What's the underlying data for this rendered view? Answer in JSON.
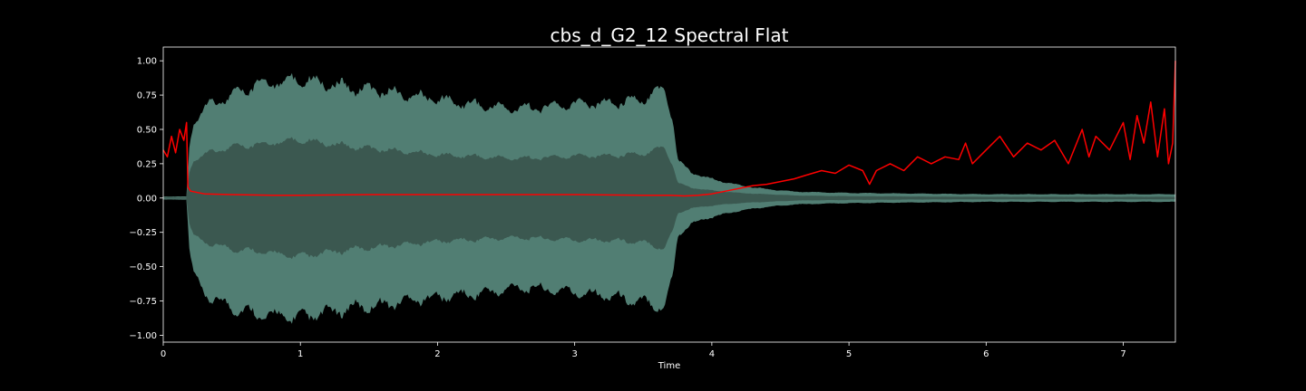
{
  "chart_data": {
    "type": "line",
    "title": "cbs_d_G2_12 Spectral Flat",
    "xlabel": "Time",
    "ylabel": "",
    "xlim": [
      0,
      7.38
    ],
    "ylim": [
      -1.05,
      1.1
    ],
    "x_ticks": [
      0,
      1,
      2,
      3,
      4,
      5,
      6,
      7
    ],
    "x_tick_labels": [
      "0",
      "1",
      "2",
      "3",
      "4",
      "5",
      "6",
      "7"
    ],
    "y_ticks": [
      1.0,
      0.75,
      0.5,
      0.25,
      0.0,
      -0.25,
      -0.5,
      -0.75,
      -1.0
    ],
    "y_tick_labels": [
      "1.00",
      "0.75",
      "0.50",
      "0.25",
      "0.00",
      "−0.25",
      "−0.50",
      "−0.75",
      "−1.00"
    ],
    "grid": false,
    "waveform": {
      "color": "#5a8c80",
      "inner_color": "#3a564e",
      "envelope": {
        "x": [
          0.0,
          0.17,
          0.19,
          0.22,
          0.3,
          0.5,
          0.7,
          0.9,
          1.0,
          1.2,
          1.4,
          1.6,
          1.8,
          2.0,
          2.2,
          2.4,
          2.6,
          2.8,
          3.0,
          3.2,
          3.4,
          3.55,
          3.65,
          3.72,
          3.75,
          3.85,
          4.0,
          4.2,
          4.4,
          4.6,
          5.0,
          5.5,
          6.0,
          6.5,
          7.0,
          7.38
        ],
        "upper": [
          0.012,
          0.012,
          0.4,
          0.6,
          0.72,
          0.8,
          0.9,
          0.92,
          0.94,
          0.9,
          0.86,
          0.84,
          0.8,
          0.78,
          0.74,
          0.72,
          0.7,
          0.72,
          0.74,
          0.74,
          0.76,
          0.8,
          0.86,
          0.6,
          0.3,
          0.2,
          0.15,
          0.1,
          0.07,
          0.05,
          0.04,
          0.035,
          0.03,
          0.03,
          0.03,
          0.03
        ],
        "lower": [
          -0.012,
          -0.012,
          -0.4,
          -0.6,
          -0.76,
          -0.86,
          -0.92,
          -0.93,
          -0.94,
          -0.9,
          -0.86,
          -0.84,
          -0.8,
          -0.78,
          -0.76,
          -0.74,
          -0.7,
          -0.72,
          -0.74,
          -0.76,
          -0.8,
          -0.83,
          -0.86,
          -0.6,
          -0.3,
          -0.2,
          -0.15,
          -0.1,
          -0.07,
          -0.05,
          -0.04,
          -0.035,
          -0.03,
          -0.03,
          -0.03,
          -0.03
        ],
        "inner_upper": [
          0.005,
          0.005,
          0.2,
          0.3,
          0.35,
          0.4,
          0.42,
          0.45,
          0.46,
          0.43,
          0.4,
          0.38,
          0.36,
          0.34,
          0.33,
          0.32,
          0.31,
          0.32,
          0.33,
          0.33,
          0.34,
          0.36,
          0.4,
          0.25,
          0.12,
          0.08,
          0.06,
          0.04,
          0.03,
          0.02,
          0.015,
          0.012,
          0.01,
          0.01,
          0.01,
          0.01
        ],
        "inner_lower": [
          -0.005,
          -0.005,
          -0.2,
          -0.3,
          -0.35,
          -0.4,
          -0.42,
          -0.45,
          -0.46,
          -0.43,
          -0.4,
          -0.38,
          -0.36,
          -0.34,
          -0.33,
          -0.32,
          -0.31,
          -0.32,
          -0.33,
          -0.33,
          -0.34,
          -0.36,
          -0.4,
          -0.25,
          -0.12,
          -0.08,
          -0.06,
          -0.04,
          -0.03,
          -0.02,
          -0.015,
          -0.012,
          -0.01,
          -0.01,
          -0.01,
          -0.01
        ]
      }
    },
    "series": [
      {
        "color": "#ff0000",
        "x": [
          0.0,
          0.03,
          0.06,
          0.09,
          0.12,
          0.15,
          0.17,
          0.18,
          0.2,
          0.3,
          0.5,
          0.8,
          1.0,
          1.5,
          2.0,
          2.5,
          3.0,
          3.5,
          3.7,
          3.8,
          3.9,
          4.0,
          4.1,
          4.2,
          4.3,
          4.4,
          4.5,
          4.6,
          4.7,
          4.8,
          4.9,
          5.0,
          5.1,
          5.15,
          5.2,
          5.3,
          5.4,
          5.5,
          5.6,
          5.7,
          5.8,
          5.85,
          5.9,
          6.0,
          6.1,
          6.2,
          6.3,
          6.4,
          6.5,
          6.6,
          6.7,
          6.75,
          6.8,
          6.9,
          7.0,
          7.05,
          7.1,
          7.15,
          7.2,
          7.25,
          7.3,
          7.33,
          7.36,
          7.38
        ],
        "values": [
          0.35,
          0.3,
          0.45,
          0.33,
          0.5,
          0.42,
          0.55,
          0.08,
          0.05,
          0.03,
          0.025,
          0.02,
          0.02,
          0.025,
          0.025,
          0.025,
          0.025,
          0.02,
          0.02,
          0.015,
          0.02,
          0.03,
          0.05,
          0.07,
          0.09,
          0.1,
          0.12,
          0.14,
          0.17,
          0.2,
          0.18,
          0.24,
          0.2,
          0.1,
          0.2,
          0.25,
          0.2,
          0.3,
          0.25,
          0.3,
          0.28,
          0.4,
          0.25,
          0.35,
          0.45,
          0.3,
          0.4,
          0.35,
          0.42,
          0.25,
          0.5,
          0.3,
          0.45,
          0.35,
          0.55,
          0.28,
          0.6,
          0.4,
          0.7,
          0.3,
          0.65,
          0.25,
          0.4,
          1.0
        ]
      }
    ]
  }
}
